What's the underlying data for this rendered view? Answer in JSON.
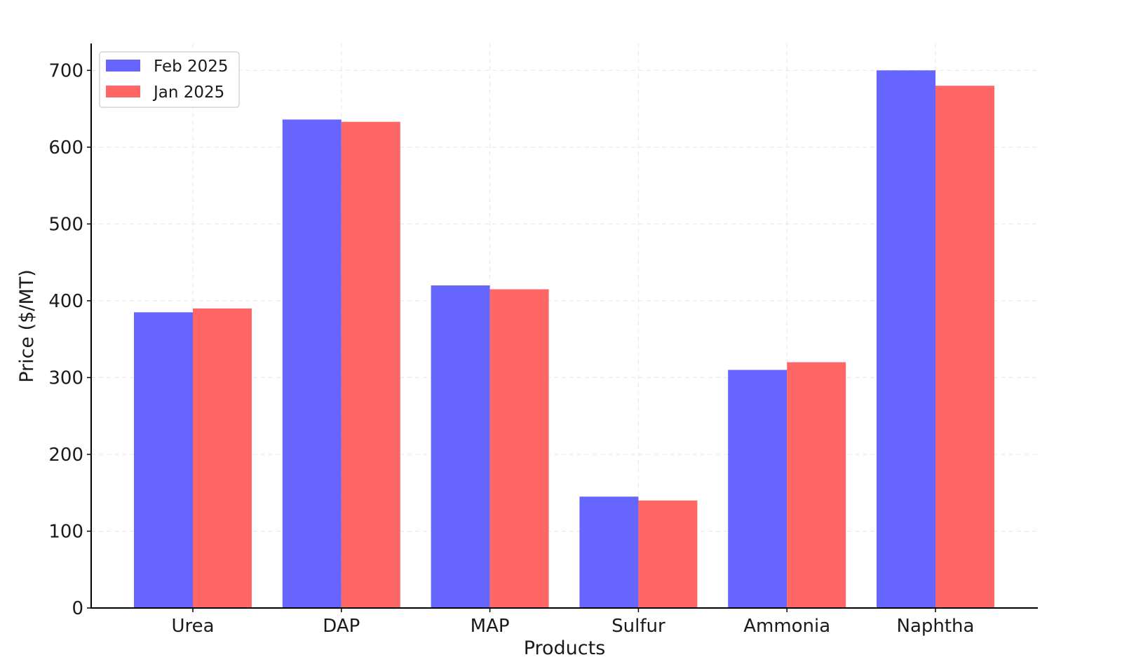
{
  "chart_data": {
    "type": "bar",
    "xlabel": "Products",
    "ylabel": "Price ($/MT)",
    "categories": [
      "Urea",
      "DAP",
      "MAP",
      "Sulfur",
      "Ammonia",
      "Naphtha"
    ],
    "series": [
      {
        "name": "Feb 2025",
        "color": "#6666ff",
        "values": [
          385,
          636,
          420,
          145,
          310,
          700
        ]
      },
      {
        "name": "Jan 2025",
        "color": "#ff6666",
        "values": [
          390,
          633,
          415,
          140,
          320,
          680
        ]
      }
    ],
    "ylim": [
      0,
      735
    ],
    "yticks": [
      0,
      100,
      200,
      300,
      400,
      500,
      600,
      700
    ],
    "grid": true,
    "legend": "top-left"
  }
}
